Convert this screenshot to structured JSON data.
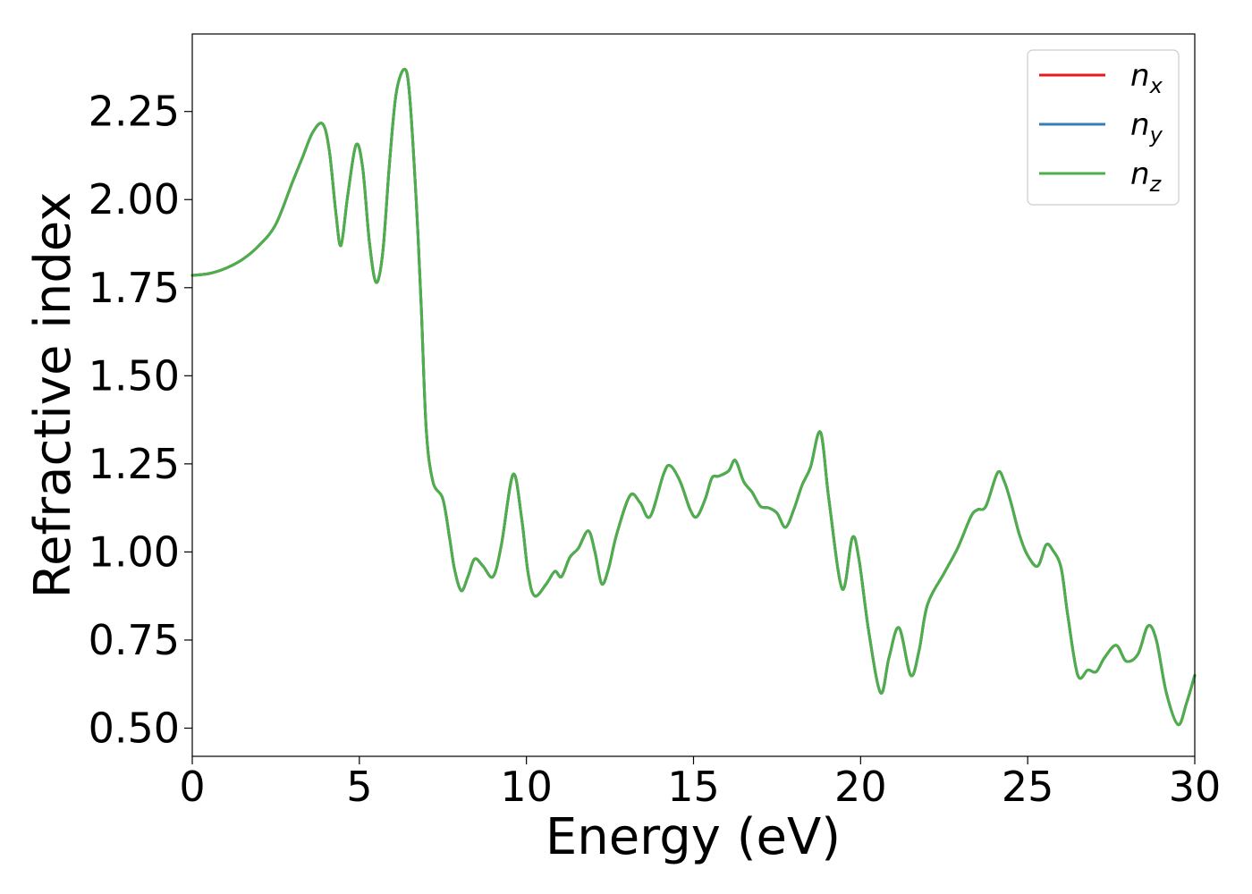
{
  "chart_data": {
    "type": "line",
    "title": "",
    "xlabel": "Energy (eV)",
    "ylabel": "Refractive index",
    "xlim": [
      0,
      30
    ],
    "ylim": [
      0.42,
      2.47
    ],
    "xticks": [
      0,
      5,
      10,
      15,
      20,
      25,
      30
    ],
    "yticks": [
      0.5,
      0.75,
      1.0,
      1.25,
      1.5,
      1.75,
      2.0,
      2.25
    ],
    "ytick_labels": [
      "0.50",
      "0.75",
      "1.00",
      "1.25",
      "1.50",
      "1.75",
      "2.00",
      "2.25"
    ],
    "grid": false,
    "legend_position": "top-right",
    "x": [
      0,
      0.5,
      1.0,
      1.5,
      2.0,
      2.5,
      3.0,
      3.3,
      3.6,
      3.9,
      4.1,
      4.3,
      4.45,
      4.65,
      4.9,
      5.1,
      5.3,
      5.5,
      5.7,
      5.9,
      6.1,
      6.35,
      6.5,
      6.7,
      6.85,
      7.0,
      7.2,
      7.5,
      7.7,
      7.85,
      8.05,
      8.25,
      8.45,
      8.7,
      9.0,
      9.25,
      9.6,
      9.85,
      10.05,
      10.25,
      10.6,
      10.85,
      11.05,
      11.3,
      11.55,
      11.85,
      12.05,
      12.25,
      12.45,
      12.7,
      13.1,
      13.4,
      13.7,
      14.1,
      14.3,
      14.6,
      14.9,
      15.1,
      15.35,
      15.55,
      15.75,
      16.05,
      16.25,
      16.5,
      16.75,
      17.0,
      17.25,
      17.5,
      17.75,
      18.0,
      18.25,
      18.5,
      18.8,
      19.05,
      19.45,
      19.75,
      19.95,
      20.25,
      20.6,
      20.85,
      21.15,
      21.5,
      21.75,
      22.0,
      22.5,
      22.9,
      23.3,
      23.5,
      23.75,
      24.1,
      24.3,
      24.5,
      24.75,
      25.0,
      25.3,
      25.55,
      25.75,
      26.0,
      26.2,
      26.5,
      26.8,
      27.05,
      27.3,
      27.65,
      27.95,
      28.3,
      28.6,
      28.85,
      29.15,
      29.5,
      29.75,
      30.0
    ],
    "series": [
      {
        "name": "n_x",
        "color": "#e41a1c",
        "y": [
          1.785,
          1.79,
          1.805,
          1.83,
          1.87,
          1.93,
          2.05,
          2.12,
          2.19,
          2.215,
          2.14,
          1.96,
          1.87,
          2.01,
          2.155,
          2.09,
          1.88,
          1.765,
          1.85,
          2.1,
          2.3,
          2.37,
          2.3,
          2.0,
          1.7,
          1.35,
          1.2,
          1.15,
          1.04,
          0.95,
          0.89,
          0.93,
          0.98,
          0.96,
          0.93,
          1.02,
          1.22,
          1.1,
          0.94,
          0.875,
          0.91,
          0.945,
          0.93,
          0.985,
          1.01,
          1.06,
          1.0,
          0.91,
          0.95,
          1.05,
          1.16,
          1.14,
          1.1,
          1.22,
          1.245,
          1.2,
          1.12,
          1.1,
          1.15,
          1.21,
          1.215,
          1.23,
          1.26,
          1.2,
          1.17,
          1.13,
          1.125,
          1.11,
          1.07,
          1.12,
          1.19,
          1.24,
          1.34,
          1.15,
          0.895,
          1.04,
          0.98,
          0.77,
          0.6,
          0.7,
          0.785,
          0.65,
          0.72,
          0.85,
          0.94,
          1.01,
          1.1,
          1.12,
          1.13,
          1.225,
          1.2,
          1.14,
          1.05,
          0.99,
          0.96,
          1.02,
          1.005,
          0.955,
          0.82,
          0.65,
          0.665,
          0.66,
          0.7,
          0.735,
          0.69,
          0.71,
          0.79,
          0.75,
          0.6,
          0.51,
          0.57,
          0.65
        ]
      },
      {
        "name": "n_y",
        "color": "#377eb8",
        "y": [
          1.785,
          1.79,
          1.805,
          1.83,
          1.87,
          1.93,
          2.05,
          2.12,
          2.19,
          2.215,
          2.14,
          1.96,
          1.87,
          2.01,
          2.155,
          2.09,
          1.88,
          1.765,
          1.85,
          2.1,
          2.3,
          2.37,
          2.3,
          2.0,
          1.7,
          1.35,
          1.2,
          1.15,
          1.04,
          0.95,
          0.89,
          0.93,
          0.98,
          0.96,
          0.93,
          1.02,
          1.22,
          1.1,
          0.94,
          0.875,
          0.91,
          0.945,
          0.93,
          0.985,
          1.01,
          1.06,
          1.0,
          0.91,
          0.95,
          1.05,
          1.16,
          1.14,
          1.1,
          1.22,
          1.245,
          1.2,
          1.12,
          1.1,
          1.15,
          1.21,
          1.215,
          1.23,
          1.26,
          1.2,
          1.17,
          1.13,
          1.125,
          1.11,
          1.07,
          1.12,
          1.19,
          1.24,
          1.34,
          1.15,
          0.895,
          1.04,
          0.98,
          0.77,
          0.6,
          0.7,
          0.785,
          0.65,
          0.72,
          0.85,
          0.94,
          1.01,
          1.1,
          1.12,
          1.13,
          1.225,
          1.2,
          1.14,
          1.05,
          0.99,
          0.96,
          1.02,
          1.005,
          0.955,
          0.82,
          0.65,
          0.665,
          0.66,
          0.7,
          0.735,
          0.69,
          0.71,
          0.79,
          0.75,
          0.6,
          0.51,
          0.57,
          0.65
        ]
      },
      {
        "name": "n_z",
        "color": "#4daf4a",
        "y": [
          1.785,
          1.79,
          1.805,
          1.83,
          1.87,
          1.93,
          2.05,
          2.12,
          2.19,
          2.215,
          2.14,
          1.96,
          1.87,
          2.01,
          2.155,
          2.09,
          1.88,
          1.765,
          1.85,
          2.1,
          2.3,
          2.37,
          2.3,
          2.0,
          1.7,
          1.35,
          1.2,
          1.15,
          1.04,
          0.95,
          0.89,
          0.93,
          0.98,
          0.96,
          0.93,
          1.02,
          1.22,
          1.1,
          0.94,
          0.875,
          0.91,
          0.945,
          0.93,
          0.985,
          1.01,
          1.06,
          1.0,
          0.91,
          0.95,
          1.05,
          1.16,
          1.14,
          1.1,
          1.22,
          1.245,
          1.2,
          1.12,
          1.1,
          1.15,
          1.21,
          1.215,
          1.23,
          1.26,
          1.2,
          1.17,
          1.13,
          1.125,
          1.11,
          1.07,
          1.12,
          1.19,
          1.24,
          1.34,
          1.15,
          0.895,
          1.04,
          0.98,
          0.77,
          0.6,
          0.7,
          0.785,
          0.65,
          0.72,
          0.85,
          0.94,
          1.01,
          1.1,
          1.12,
          1.13,
          1.225,
          1.2,
          1.14,
          1.05,
          0.99,
          0.96,
          1.02,
          1.005,
          0.955,
          0.82,
          0.65,
          0.665,
          0.66,
          0.7,
          0.735,
          0.69,
          0.71,
          0.79,
          0.75,
          0.6,
          0.51,
          0.57,
          0.65
        ]
      }
    ],
    "legend": [
      {
        "base": "n",
        "sub": "x",
        "color": "#e41a1c"
      },
      {
        "base": "n",
        "sub": "y",
        "color": "#377eb8"
      },
      {
        "base": "n",
        "sub": "z",
        "color": "#4daf4a"
      }
    ]
  }
}
